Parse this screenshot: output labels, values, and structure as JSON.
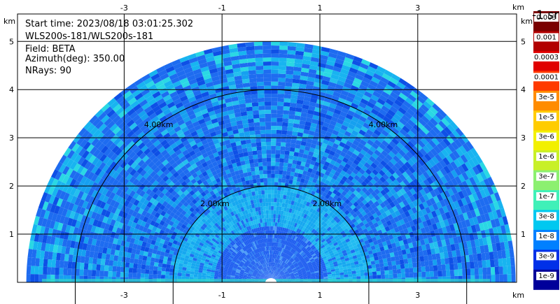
{
  "header": {
    "start_time": "Start time: 2023/08/18 03:01:25.302",
    "instrument": "WLS200s-181/WLS200s-181",
    "field": "Field: BETA",
    "azimuth": "Azimuth(deg): 350.00",
    "nrays": "NRays: 90"
  },
  "colorbar": {
    "unit_label": "-1 sr",
    "labels": [
      "0.003",
      "0.001",
      "0.0003",
      "0.0001",
      "3e-5",
      "1e-5",
      "3e-6",
      "1e-6",
      "3e-7",
      "1e-7",
      "3e-8",
      "1e-8",
      "3e-9",
      "1e-9"
    ],
    "colors": [
      "#7a0000",
      "#b20000",
      "#e00000",
      "#ff3a00",
      "#ff8c00",
      "#ffcc00",
      "#f2f000",
      "#c8f028",
      "#8cf070",
      "#40f0b8",
      "#00c8f0",
      "#0080ff",
      "#0030e8",
      "#00009a"
    ]
  },
  "chart_data": {
    "type": "heatmap",
    "projection": "RHI half-disc (range-height)",
    "x_axis_unit": "km",
    "y_axis_unit": "km",
    "x_ticks": [
      -3,
      -1,
      1,
      3
    ],
    "y_ticks": [
      1,
      2,
      3,
      4,
      5
    ],
    "xlim": [
      -5,
      5
    ],
    "ylim": [
      0,
      6
    ],
    "range_rings": [
      {
        "radius_km": 2,
        "label": "2.00km"
      },
      {
        "radius_km": 4,
        "label": "4.00km"
      }
    ],
    "max_range_km": 5,
    "grid": true,
    "field": "BETA",
    "value_scale": "log",
    "dominant_colors": [
      "#1e6cf0",
      "#14aaf0",
      "#22d4e6",
      "#0a4be0"
    ]
  }
}
